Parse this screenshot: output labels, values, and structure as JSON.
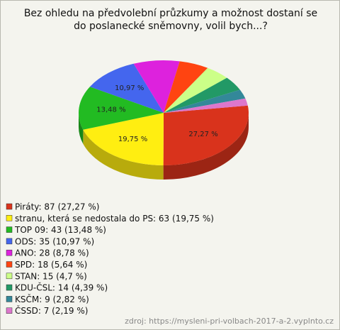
{
  "chart_data": {
    "type": "pie3d",
    "title": "Bez ohledu na předvolební průzkumy a možnost dostaní se do poslanecké sněmovny, volil bych...?",
    "categories": [
      "Piráty: 87 (27,27 %)",
      "stranu, která se nedostala do PS: 63 (19,75 %)",
      "TOP 09: 43 (13,48 %)",
      "ODS: 35 (10,97 %)",
      "ANO: 28 (8,78 %)",
      "SPD: 18 (5,64 %)",
      "STAN: 15 (4,7 %)",
      "KDU-ČSL: 14 (4,39 %)",
      "KSČM: 9 (2,82 %)",
      "ČSSD: 7 (2,19 %)"
    ],
    "values": [
      27.27,
      19.75,
      13.48,
      10.97,
      8.78,
      5.64,
      4.7,
      4.39,
      2.82,
      2.19
    ],
    "value_labels": [
      "27,27 %",
      "19,75 %",
      "13,48 %",
      "10,97 %",
      null,
      null,
      null,
      null,
      null,
      null
    ],
    "colors": [
      "#d9331c",
      "#ffee11",
      "#22bb22",
      "#4466ee",
      "#dd22dd",
      "#ff4411",
      "#ccff88",
      "#229966",
      "#338899",
      "#dd77cc"
    ],
    "source": "zdroj: https://mysleni-pri-volbach-2017-a-2.vyplnto.cz"
  }
}
